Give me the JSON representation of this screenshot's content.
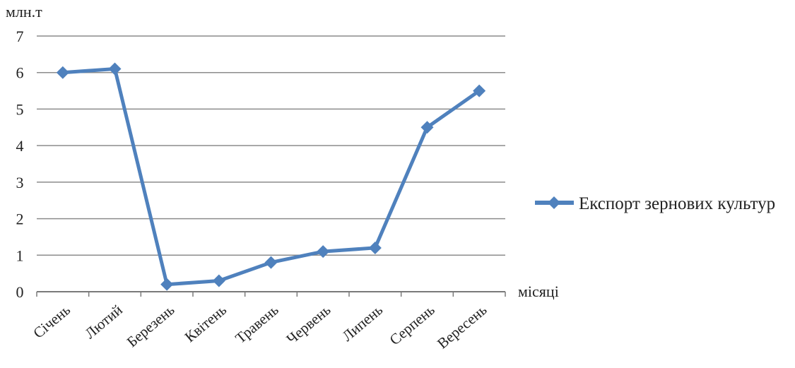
{
  "chart_data": {
    "type": "line",
    "ylabel": "млн.т",
    "xlabel": "місяці",
    "categories": [
      "Січень",
      "Лютий",
      "Березень",
      "Квітень",
      "Травень",
      "Червень",
      "Липень",
      "Серпень",
      "Вересень"
    ],
    "series": [
      {
        "name": "Експорт зернових культур",
        "values": [
          6.0,
          6.1,
          0.2,
          0.3,
          0.8,
          1.1,
          1.2,
          4.5,
          5.5
        ],
        "color": "#4F81BD"
      }
    ],
    "ylim": [
      0,
      7
    ],
    "yticks": [
      "0",
      "1",
      "2",
      "3",
      "4",
      "5",
      "6",
      "7"
    ],
    "grid": true,
    "legend_position": "right",
    "marker": "diamond"
  }
}
